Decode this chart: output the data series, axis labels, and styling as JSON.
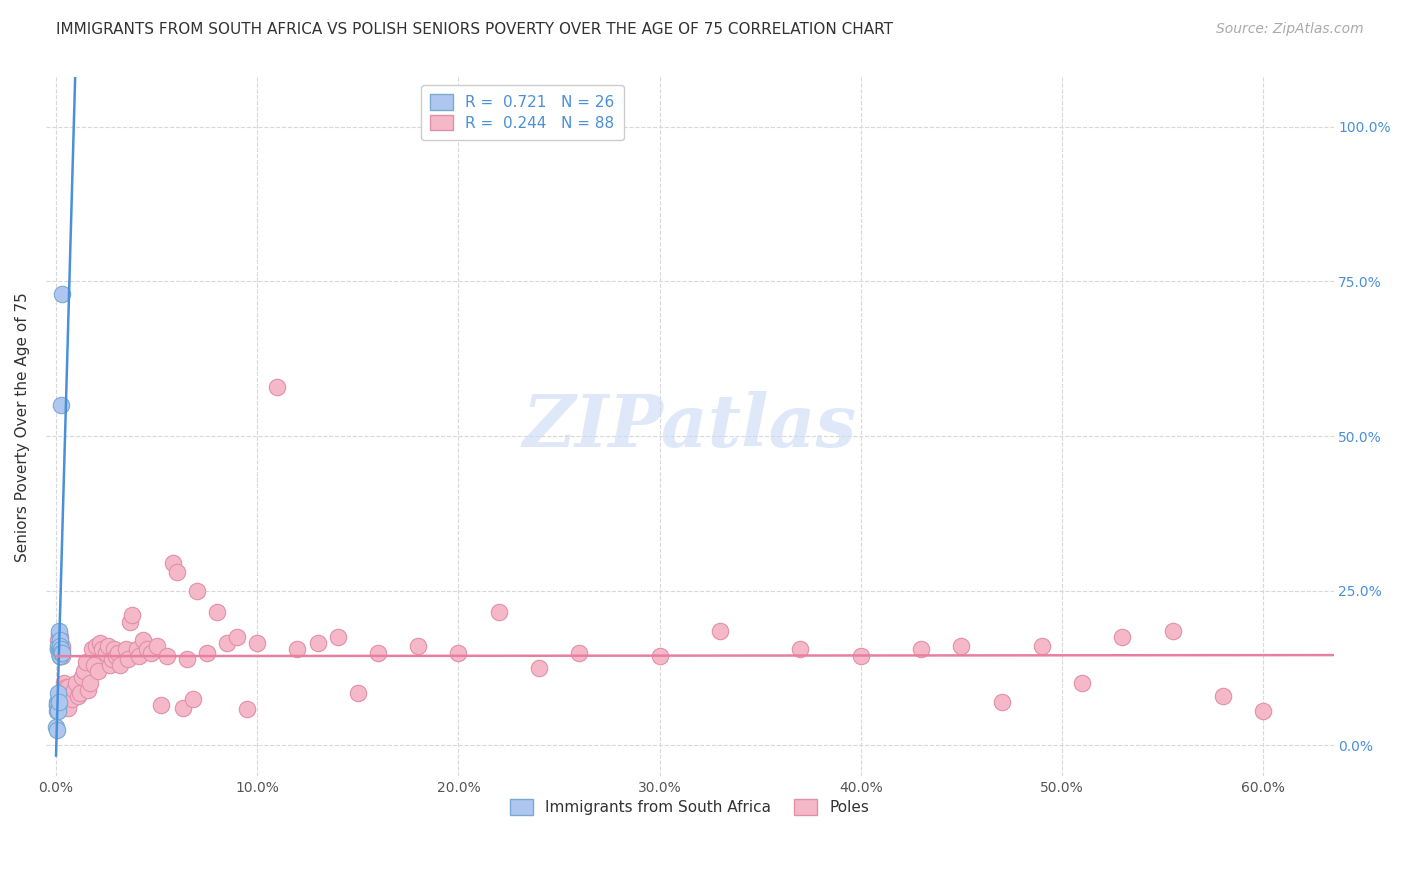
{
  "title": "IMMIGRANTS FROM SOUTH AFRICA VS POLISH SENIORS POVERTY OVER THE AGE OF 75 CORRELATION CHART",
  "source": "Source: ZipAtlas.com",
  "xlabel_ticks": [
    "0.0%",
    "10.0%",
    "20.0%",
    "30.0%",
    "40.0%",
    "50.0%",
    "60.0%"
  ],
  "xlabel_tick_vals": [
    0.0,
    0.1,
    0.2,
    0.3,
    0.4,
    0.5,
    0.6
  ],
  "ylabel_ticks": [
    "0.0%",
    "25.0%",
    "50.0%",
    "75.0%",
    "100.0%"
  ],
  "ylabel_tick_vals": [
    0.0,
    0.25,
    0.5,
    0.75,
    1.0
  ],
  "ylabel_label": "Seniors Poverty Over the Age of 75",
  "xlim": [
    -0.005,
    0.635
  ],
  "ylim": [
    -0.05,
    1.08
  ],
  "watermark": "ZIPatlas",
  "legend_label1": "Immigrants from South Africa",
  "legend_label2": "Poles",
  "blue_R": 0.721,
  "blue_N": 26,
  "pink_R": 0.244,
  "pink_N": 88,
  "blue_scatter_x": [
    0.0002,
    0.0003,
    0.0004,
    0.0005,
    0.0006,
    0.0007,
    0.0008,
    0.0009,
    0.001,
    0.0012,
    0.0013,
    0.0015,
    0.0016,
    0.0018,
    0.0019,
    0.002,
    0.0022,
    0.0022,
    0.0025,
    0.0028,
    0.0012,
    0.0014,
    0.002,
    0.0024,
    0.0026,
    0.003
  ],
  "blue_scatter_y": [
    0.03,
    0.07,
    0.055,
    0.065,
    0.025,
    0.065,
    0.06,
    0.055,
    0.155,
    0.16,
    0.155,
    0.18,
    0.185,
    0.145,
    0.145,
    0.145,
    0.155,
    0.17,
    0.55,
    0.73,
    0.085,
    0.07,
    0.16,
    0.155,
    0.15,
    0.15
  ],
  "pink_scatter_x": [
    0.001,
    0.001,
    0.002,
    0.002,
    0.002,
    0.003,
    0.003,
    0.003,
    0.004,
    0.004,
    0.005,
    0.005,
    0.005,
    0.006,
    0.006,
    0.007,
    0.008,
    0.009,
    0.01,
    0.011,
    0.012,
    0.013,
    0.014,
    0.015,
    0.016,
    0.017,
    0.018,
    0.019,
    0.02,
    0.021,
    0.022,
    0.023,
    0.025,
    0.026,
    0.027,
    0.028,
    0.029,
    0.03,
    0.031,
    0.032,
    0.035,
    0.036,
    0.037,
    0.038,
    0.04,
    0.041,
    0.043,
    0.045,
    0.047,
    0.05,
    0.052,
    0.055,
    0.058,
    0.06,
    0.063,
    0.065,
    0.068,
    0.07,
    0.075,
    0.08,
    0.085,
    0.09,
    0.095,
    0.1,
    0.11,
    0.12,
    0.13,
    0.14,
    0.15,
    0.16,
    0.18,
    0.2,
    0.22,
    0.24,
    0.26,
    0.3,
    0.33,
    0.37,
    0.4,
    0.43,
    0.45,
    0.47,
    0.49,
    0.51,
    0.53,
    0.555,
    0.58,
    0.6
  ],
  "pink_scatter_y": [
    0.155,
    0.17,
    0.145,
    0.15,
    0.175,
    0.155,
    0.145,
    0.16,
    0.09,
    0.1,
    0.065,
    0.08,
    0.095,
    0.06,
    0.095,
    0.08,
    0.075,
    0.09,
    0.1,
    0.08,
    0.085,
    0.11,
    0.12,
    0.135,
    0.09,
    0.1,
    0.155,
    0.13,
    0.16,
    0.12,
    0.165,
    0.155,
    0.15,
    0.16,
    0.13,
    0.14,
    0.155,
    0.145,
    0.15,
    0.13,
    0.155,
    0.14,
    0.2,
    0.21,
    0.155,
    0.145,
    0.17,
    0.155,
    0.15,
    0.16,
    0.065,
    0.145,
    0.295,
    0.28,
    0.06,
    0.14,
    0.075,
    0.25,
    0.15,
    0.215,
    0.165,
    0.175,
    0.058,
    0.165,
    0.58,
    0.155,
    0.165,
    0.175,
    0.085,
    0.15,
    0.16,
    0.15,
    0.215,
    0.125,
    0.15,
    0.145,
    0.185,
    0.155,
    0.145,
    0.155,
    0.16,
    0.07,
    0.16,
    0.1,
    0.175,
    0.185,
    0.08,
    0.055
  ],
  "blue_line_color": "#4a90d9",
  "pink_line_color": "#e87fa0",
  "blue_dot_color": "#aec6f0",
  "pink_dot_color": "#f5b8c8",
  "dot_edge_blue": "#7aaad0",
  "dot_edge_pink": "#e090a8",
  "grid_color": "#d8d8d8",
  "background_color": "#ffffff",
  "title_fontsize": 11,
  "source_fontsize": 10,
  "tick_fontsize": 10,
  "ylabel_fontsize": 11,
  "watermark_color": "#c8daf5",
  "watermark_fontsize": 52
}
